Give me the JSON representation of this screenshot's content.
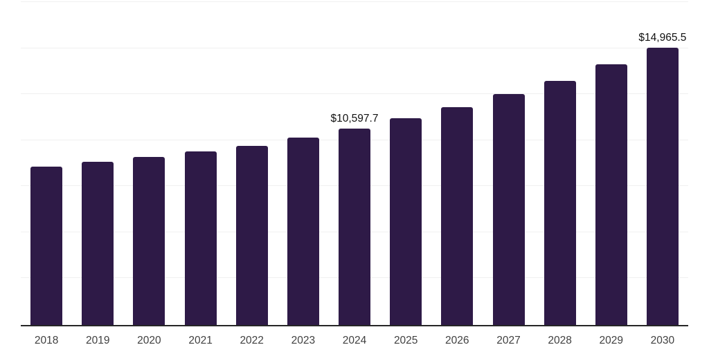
{
  "page": {
    "background_color": "#FFFFFF"
  },
  "chart_data": {
    "type": "bar",
    "title": "",
    "subtitle": "",
    "xlabel": "",
    "ylabel": "",
    "categories": [
      "2018",
      "2019",
      "2020",
      "2021",
      "2022",
      "2023",
      "2024",
      "2025",
      "2026",
      "2027",
      "2028",
      "2029",
      "2030"
    ],
    "values": [
      8510,
      8780,
      9040,
      9340,
      9640,
      10090,
      10597.7,
      11150,
      11750,
      12460,
      13180,
      14080,
      14965.5
    ],
    "value_labels": {
      "2024": "$10,597.7",
      "2030": "$14,965.5"
    },
    "ylim": [
      0,
      17500
    ],
    "gridline_step": 2500,
    "grid_on": true,
    "y_axis_tick_labels_visible": false,
    "legend_position": "none",
    "colors": {
      "bar": "#2E1A47",
      "gridline": "#F0F0F0",
      "axis_line": "#262626",
      "tick_label": "#404040",
      "data_label": "#111111"
    }
  }
}
